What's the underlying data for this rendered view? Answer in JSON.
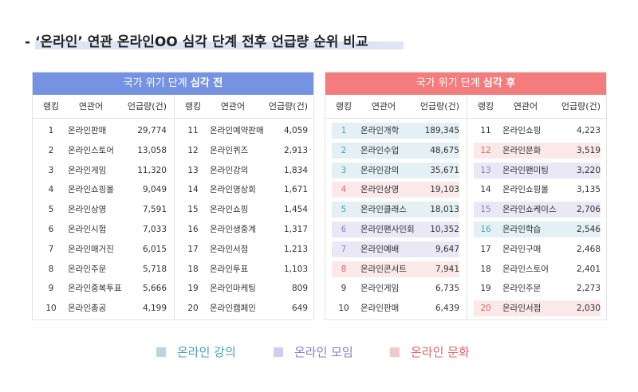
{
  "title": "- ‘온라인’ 연관 온라인OO 심각 단계 전후 언급량 순위 비교",
  "colors": {
    "blue": "#7593e2",
    "red": "#f47c7c",
    "teal": "#b9d7df",
    "purple": "#d3ccec",
    "pink": "#f4c9c9"
  },
  "before": {
    "heading_pre": "국가 위기 단계 ",
    "heading_bold": "심각 전",
    "headers": {
      "rank": "랭킹",
      "word": "연관어",
      "count": "언급량(건)"
    },
    "col1": [
      {
        "rank": "1",
        "word": "온라인판매",
        "count": "29,774"
      },
      {
        "rank": "2",
        "word": "온라인스토어",
        "count": "13,058"
      },
      {
        "rank": "3",
        "word": "온라인게임",
        "count": "11,320"
      },
      {
        "rank": "4",
        "word": "온라인쇼핑몰",
        "count": "9,049"
      },
      {
        "rank": "5",
        "word": "온라인상영",
        "count": "7,591"
      },
      {
        "rank": "6",
        "word": "온라인시험",
        "count": "7,033"
      },
      {
        "rank": "7",
        "word": "온라인매거진",
        "count": "6,015"
      },
      {
        "rank": "8",
        "word": "온라인주문",
        "count": "5,718"
      },
      {
        "rank": "9",
        "word": "온라인중복투표",
        "count": "5,666"
      },
      {
        "rank": "10",
        "word": "온라인총공",
        "count": "4,199"
      }
    ],
    "col2": [
      {
        "rank": "11",
        "word": "온라인예약판매",
        "count": "4,059"
      },
      {
        "rank": "12",
        "word": "온라인퀴즈",
        "count": "2,913"
      },
      {
        "rank": "13",
        "word": "온라인강의",
        "count": "1,834"
      },
      {
        "rank": "14",
        "word": "온라인영상회",
        "count": "1,671"
      },
      {
        "rank": "15",
        "word": "온라인쇼핑",
        "count": "1,454"
      },
      {
        "rank": "16",
        "word": "온라인생중계",
        "count": "1,317"
      },
      {
        "rank": "17",
        "word": "온라인서점",
        "count": "1,213"
      },
      {
        "rank": "18",
        "word": "온라인투표",
        "count": "1,103"
      },
      {
        "rank": "19",
        "word": "온라인마케팅",
        "count": "809"
      },
      {
        "rank": "20",
        "word": "온라인캠페인",
        "count": "649"
      }
    ]
  },
  "after": {
    "heading_pre": "국가 위기 단계 ",
    "heading_bold": "심각 후",
    "headers": {
      "rank": "랭킹",
      "word": "연관어",
      "count": "언급량(건)"
    },
    "col1": [
      {
        "rank": "1",
        "word": "온라인개학",
        "count": "189,345",
        "cat": "teal"
      },
      {
        "rank": "2",
        "word": "온라인수업",
        "count": "48,675",
        "cat": "teal"
      },
      {
        "rank": "3",
        "word": "온라인강의",
        "count": "35,671",
        "cat": "teal"
      },
      {
        "rank": "4",
        "word": "온라인상영",
        "count": "19,103",
        "cat": "pink"
      },
      {
        "rank": "5",
        "word": "온라인클래스",
        "count": "18,013",
        "cat": "teal"
      },
      {
        "rank": "6",
        "word": "온라인팬사인회",
        "count": "10,352",
        "cat": "purple"
      },
      {
        "rank": "7",
        "word": "온라인예배",
        "count": "9,647",
        "cat": "purple"
      },
      {
        "rank": "8",
        "word": "온라인콘서트",
        "count": "7,941",
        "cat": "pink"
      },
      {
        "rank": "9",
        "word": "온라인게임",
        "count": "6,735",
        "cat": ""
      },
      {
        "rank": "10",
        "word": "온라인판매",
        "count": "6,439",
        "cat": ""
      }
    ],
    "col2": [
      {
        "rank": "11",
        "word": "온라인쇼핑",
        "count": "4,223",
        "cat": ""
      },
      {
        "rank": "12",
        "word": "온라인문화",
        "count": "3,519",
        "cat": "pink"
      },
      {
        "rank": "13",
        "word": "온라인팬미팅",
        "count": "3,220",
        "cat": "purple"
      },
      {
        "rank": "14",
        "word": "온라인쇼핑몰",
        "count": "3,135",
        "cat": ""
      },
      {
        "rank": "15",
        "word": "온라인쇼케이스",
        "count": "2,706",
        "cat": "purple"
      },
      {
        "rank": "16",
        "word": "온라인학습",
        "count": "2,546",
        "cat": "teal"
      },
      {
        "rank": "17",
        "word": "온라인구매",
        "count": "2,468",
        "cat": ""
      },
      {
        "rank": "18",
        "word": "온라인스토어",
        "count": "2,401",
        "cat": ""
      },
      {
        "rank": "19",
        "word": "온라인주문",
        "count": "2,273",
        "cat": ""
      },
      {
        "rank": "20",
        "word": "온라인서점",
        "count": "2,030",
        "cat": "pink"
      }
    ]
  },
  "legend": [
    {
      "label": "온라인 강의",
      "color": "#b9d7df",
      "text_color": "#4aa3b3"
    },
    {
      "label": "온라인 모임",
      "color": "#d3ccec",
      "text_color": "#8a7bc9"
    },
    {
      "label": "온라인 문화",
      "color": "#f4c9c9",
      "text_color": "#e06666"
    }
  ]
}
